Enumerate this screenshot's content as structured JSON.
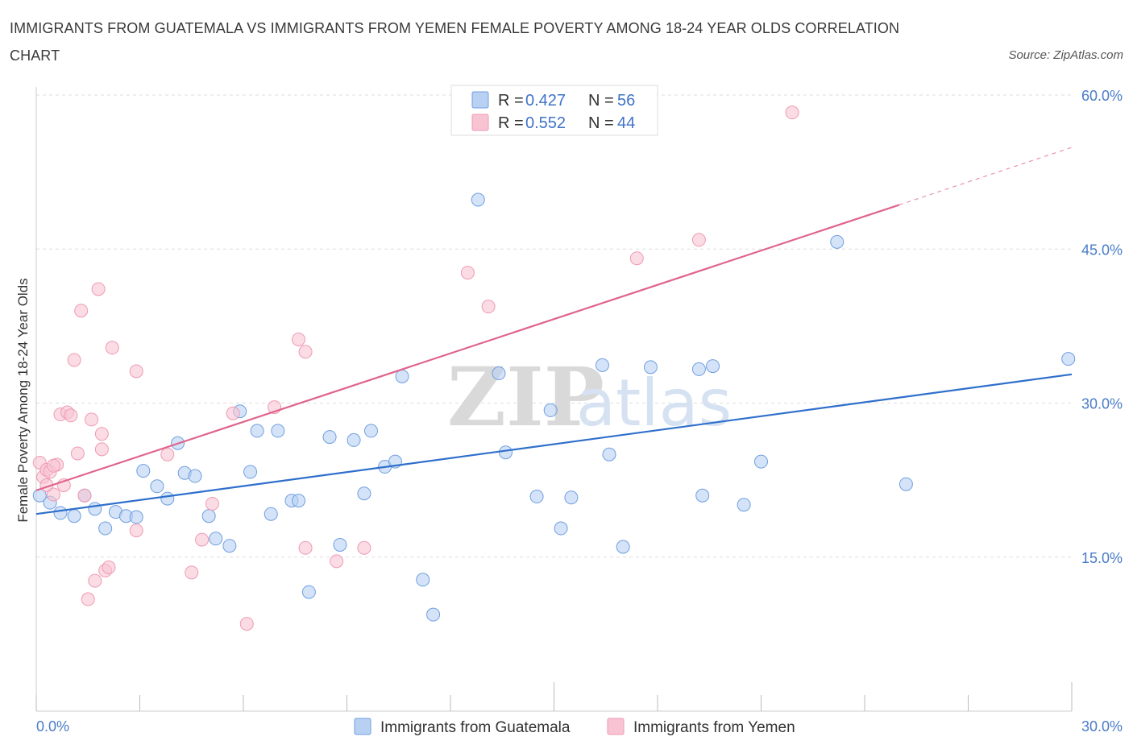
{
  "title": "IMMIGRANTS FROM GUATEMALA VS IMMIGRANTS FROM YEMEN FEMALE POVERTY AMONG 18-24 YEAR OLDS CORRELATION CHART",
  "source": "Source: ZipAtlas.com",
  "watermark": {
    "zip": "ZIP",
    "atlas": "atlas"
  },
  "stats_legend": {
    "r_label": "R = ",
    "n_label": "N = ",
    "rows": [
      {
        "r": "0.427",
        "n": "56",
        "color": "#b8d1f3"
      },
      {
        "r": "0.552",
        "n": "44",
        "color": "#f8c4d4"
      }
    ]
  },
  "chart_data": {
    "type": "scatter",
    "ylabel": "Female Poverty Among 18-24 Year Olds",
    "xlabel": "",
    "xlim": [
      0,
      30
    ],
    "ylim": [
      0,
      60
    ],
    "x_tick_labels": [
      "0.0%",
      "30.0%"
    ],
    "y_ticks": [
      15,
      30,
      45,
      60
    ],
    "y_tick_labels": [
      "15.0%",
      "30.0%",
      "45.0%",
      "60.0%"
    ],
    "grid": "horizontal dashed",
    "legend_position": "bottom",
    "series": [
      {
        "name": "Immigrants from Guatemala",
        "color": "#6f9fe0",
        "fill": "#b8d1f3",
        "line_color": "#2f6fcc",
        "trend": {
          "x": [
            0,
            30
          ],
          "y": [
            19.2,
            32.8
          ]
        },
        "points": [
          [
            0.4,
            20.3
          ],
          [
            0.7,
            19.3
          ],
          [
            1.1,
            19.0
          ],
          [
            1.4,
            21.0
          ],
          [
            1.7,
            19.7
          ],
          [
            2.0,
            17.8
          ],
          [
            2.3,
            19.4
          ],
          [
            2.6,
            19.0
          ],
          [
            2.9,
            18.9
          ],
          [
            3.1,
            23.4
          ],
          [
            3.5,
            21.9
          ],
          [
            3.8,
            20.7
          ],
          [
            4.1,
            26.1
          ],
          [
            4.3,
            23.2
          ],
          [
            4.6,
            22.9
          ],
          [
            5.0,
            19.0
          ],
          [
            5.2,
            16.8
          ],
          [
            5.6,
            16.1
          ],
          [
            5.9,
            29.2
          ],
          [
            6.2,
            23.3
          ],
          [
            6.4,
            27.3
          ],
          [
            6.8,
            19.2
          ],
          [
            7.0,
            27.3
          ],
          [
            7.4,
            20.5
          ],
          [
            7.6,
            20.5
          ],
          [
            7.9,
            11.6
          ],
          [
            8.5,
            26.7
          ],
          [
            8.8,
            16.2
          ],
          [
            9.2,
            26.4
          ],
          [
            9.5,
            21.2
          ],
          [
            9.7,
            27.3
          ],
          [
            10.1,
            23.8
          ],
          [
            10.4,
            24.3
          ],
          [
            10.6,
            32.6
          ],
          [
            11.2,
            12.8
          ],
          [
            11.5,
            9.4
          ],
          [
            12.8,
            49.8
          ],
          [
            13.4,
            32.9
          ],
          [
            13.6,
            25.2
          ],
          [
            14.5,
            20.9
          ],
          [
            14.9,
            29.3
          ],
          [
            15.2,
            17.8
          ],
          [
            15.5,
            20.8
          ],
          [
            16.4,
            33.7
          ],
          [
            16.6,
            25.0
          ],
          [
            17.0,
            16.0
          ],
          [
            17.8,
            33.5
          ],
          [
            19.2,
            33.3
          ],
          [
            19.3,
            21.0
          ],
          [
            19.6,
            33.6
          ],
          [
            20.5,
            20.1
          ],
          [
            21.0,
            24.3
          ],
          [
            23.2,
            45.7
          ],
          [
            25.2,
            22.1
          ],
          [
            29.9,
            34.3
          ],
          [
            0.1,
            21.0
          ]
        ]
      },
      {
        "name": "Immigrants from Yemen",
        "color": "#ee9ab3",
        "fill": "#f8c4d4",
        "line_color": "#e0648c",
        "trend": {
          "x": [
            0,
            25
          ],
          "y": [
            21.5,
            49.3
          ]
        },
        "trend_dashed": {
          "x": [
            25,
            30
          ],
          "y": [
            49.3,
            54.9
          ]
        },
        "points": [
          [
            0.1,
            24.2
          ],
          [
            0.2,
            22.8
          ],
          [
            0.3,
            23.5
          ],
          [
            0.4,
            23.3
          ],
          [
            0.5,
            21.1
          ],
          [
            0.6,
            24.0
          ],
          [
            0.7,
            28.9
          ],
          [
            0.8,
            22.0
          ],
          [
            0.9,
            29.1
          ],
          [
            1.0,
            28.8
          ],
          [
            1.1,
            34.2
          ],
          [
            1.2,
            25.1
          ],
          [
            1.3,
            39.0
          ],
          [
            1.4,
            21.0
          ],
          [
            1.5,
            10.9
          ],
          [
            1.6,
            28.4
          ],
          [
            1.7,
            12.7
          ],
          [
            1.8,
            41.1
          ],
          [
            1.9,
            25.5
          ],
          [
            1.9,
            27.0
          ],
          [
            2.0,
            13.7
          ],
          [
            2.1,
            14.0
          ],
          [
            2.2,
            35.4
          ],
          [
            2.9,
            17.6
          ],
          [
            2.9,
            33.1
          ],
          [
            3.8,
            25.0
          ],
          [
            4.5,
            13.5
          ],
          [
            4.8,
            16.7
          ],
          [
            5.1,
            20.2
          ],
          [
            5.7,
            29.0
          ],
          [
            6.1,
            8.5
          ],
          [
            6.9,
            29.6
          ],
          [
            7.6,
            36.2
          ],
          [
            7.8,
            35.0
          ],
          [
            7.8,
            15.9
          ],
          [
            8.7,
            14.6
          ],
          [
            9.5,
            15.9
          ],
          [
            12.5,
            42.7
          ],
          [
            13.1,
            39.4
          ],
          [
            17.4,
            44.1
          ],
          [
            19.2,
            45.9
          ],
          [
            21.9,
            58.3
          ],
          [
            0.3,
            22.0
          ],
          [
            0.5,
            23.9
          ]
        ]
      }
    ]
  }
}
